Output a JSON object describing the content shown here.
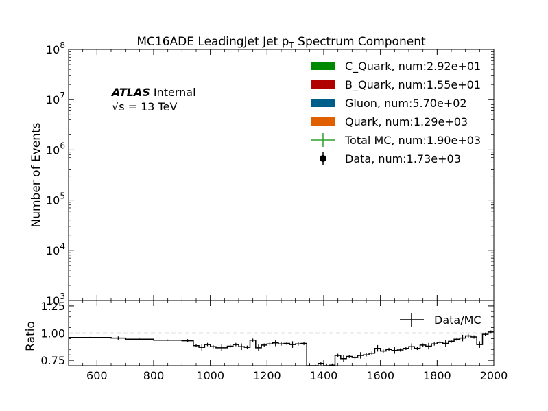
{
  "chart_data": [
    {
      "type": "bar",
      "title": "MC16ADE LeadingJet Jet p",
      "title_sub": "T",
      "title_suffix": " Spectrum Component",
      "ylabel": "Number of Events",
      "yscale": "log",
      "ylim": [
        1000,
        100000000
      ],
      "xlim": [
        500,
        2000
      ],
      "y_ticks": [
        {
          "base": "10",
          "exp": "3",
          "value": 1000
        },
        {
          "base": "10",
          "exp": "4",
          "value": 10000
        },
        {
          "base": "10",
          "exp": "5",
          "value": 100000
        },
        {
          "base": "10",
          "exp": "6",
          "value": 1000000
        },
        {
          "base": "10",
          "exp": "7",
          "value": 10000000
        },
        {
          "base": "10",
          "exp": "8",
          "value": 100000000
        }
      ],
      "atlas_label": "ATLAS",
      "atlas_status": "Internal",
      "energy_label": "√s = 13 TeV",
      "legend_position": "top-right",
      "legend": [
        {
          "label": "C_Quark, num:2.92e+01",
          "color": "#008a00",
          "kind": "patch"
        },
        {
          "label": "B_Quark, num:1.55e+01",
          "color": "#b00000",
          "kind": "patch"
        },
        {
          "label": "Gluon, num:5.70e+02",
          "color": "#005f8a",
          "kind": "patch"
        },
        {
          "label": "Quark, num:1.29e+03",
          "color": "#e06000",
          "kind": "patch"
        },
        {
          "label": "Total MC, num:1.90e+03",
          "color": "#2ca02c",
          "kind": "errorline"
        },
        {
          "label": "Data, num:1.73e+03",
          "color": "#000000",
          "kind": "errorpoint"
        }
      ]
    },
    {
      "type": "line",
      "ylabel": "Ratio",
      "xlim": [
        500,
        2000
      ],
      "ylim": [
        0.7,
        1.3
      ],
      "reference_line": 1.0,
      "x_ticks": [
        "600",
        "800",
        "1000",
        "1200",
        "1400",
        "1600",
        "1800",
        "2000"
      ],
      "y_ticks": [
        "0.75",
        "1.00",
        "1.25"
      ],
      "legend_position": "top-right",
      "series": [
        {
          "name": "Data/MC",
          "color": "#000000",
          "bins": [
            {
              "x0": 500,
              "x1": 650,
              "y": 0.96
            },
            {
              "x0": 650,
              "x1": 700,
              "y": 0.955
            },
            {
              "x0": 700,
              "x1": 800,
              "y": 0.945
            },
            {
              "x0": 800,
              "x1": 900,
              "y": 0.935
            },
            {
              "x0": 900,
              "x1": 940,
              "y": 0.93
            },
            {
              "x0": 940,
              "x1": 960,
              "y": 0.885
            },
            {
              "x0": 960,
              "x1": 980,
              "y": 0.87
            },
            {
              "x0": 980,
              "x1": 1000,
              "y": 0.895
            },
            {
              "x0": 1000,
              "x1": 1020,
              "y": 0.875
            },
            {
              "x0": 1020,
              "x1": 1060,
              "y": 0.865
            },
            {
              "x0": 1060,
              "x1": 1080,
              "y": 0.88
            },
            {
              "x0": 1080,
              "x1": 1100,
              "y": 0.895
            },
            {
              "x0": 1100,
              "x1": 1120,
              "y": 0.875
            },
            {
              "x0": 1120,
              "x1": 1140,
              "y": 0.87
            },
            {
              "x0": 1140,
              "x1": 1160,
              "y": 0.935
            },
            {
              "x0": 1160,
              "x1": 1180,
              "y": 0.865
            },
            {
              "x0": 1180,
              "x1": 1200,
              "y": 0.89
            },
            {
              "x0": 1200,
              "x1": 1220,
              "y": 0.9
            },
            {
              "x0": 1220,
              "x1": 1240,
              "y": 0.91
            },
            {
              "x0": 1240,
              "x1": 1260,
              "y": 0.9
            },
            {
              "x0": 1260,
              "x1": 1280,
              "y": 0.905
            },
            {
              "x0": 1280,
              "x1": 1300,
              "y": 0.895
            },
            {
              "x0": 1300,
              "x1": 1320,
              "y": 0.9
            },
            {
              "x0": 1320,
              "x1": 1340,
              "y": 0.905
            },
            {
              "x0": 1340,
              "x1": 1360,
              "y": 0.685
            },
            {
              "x0": 1360,
              "x1": 1380,
              "y": 0.7
            },
            {
              "x0": 1380,
              "x1": 1400,
              "y": 0.72
            },
            {
              "x0": 1400,
              "x1": 1420,
              "y": 0.69
            },
            {
              "x0": 1420,
              "x1": 1440,
              "y": 0.705
            },
            {
              "x0": 1440,
              "x1": 1460,
              "y": 0.795
            },
            {
              "x0": 1460,
              "x1": 1480,
              "y": 0.765
            },
            {
              "x0": 1480,
              "x1": 1500,
              "y": 0.785
            },
            {
              "x0": 1500,
              "x1": 1520,
              "y": 0.775
            },
            {
              "x0": 1520,
              "x1": 1540,
              "y": 0.795
            },
            {
              "x0": 1540,
              "x1": 1560,
              "y": 0.8
            },
            {
              "x0": 1560,
              "x1": 1580,
              "y": 0.815
            },
            {
              "x0": 1580,
              "x1": 1600,
              "y": 0.86
            },
            {
              "x0": 1600,
              "x1": 1620,
              "y": 0.835
            },
            {
              "x0": 1620,
              "x1": 1640,
              "y": 0.85
            },
            {
              "x0": 1640,
              "x1": 1660,
              "y": 0.84
            },
            {
              "x0": 1660,
              "x1": 1680,
              "y": 0.845
            },
            {
              "x0": 1680,
              "x1": 1700,
              "y": 0.86
            },
            {
              "x0": 1700,
              "x1": 1720,
              "y": 0.875
            },
            {
              "x0": 1720,
              "x1": 1740,
              "y": 0.86
            },
            {
              "x0": 1740,
              "x1": 1760,
              "y": 0.89
            },
            {
              "x0": 1760,
              "x1": 1780,
              "y": 0.88
            },
            {
              "x0": 1780,
              "x1": 1800,
              "y": 0.9
            },
            {
              "x0": 1800,
              "x1": 1820,
              "y": 0.915
            },
            {
              "x0": 1820,
              "x1": 1840,
              "y": 0.905
            },
            {
              "x0": 1840,
              "x1": 1860,
              "y": 0.925
            },
            {
              "x0": 1860,
              "x1": 1880,
              "y": 0.945
            },
            {
              "x0": 1880,
              "x1": 1900,
              "y": 0.955
            },
            {
              "x0": 1900,
              "x1": 1920,
              "y": 0.975
            },
            {
              "x0": 1920,
              "x1": 1940,
              "y": 0.965
            },
            {
              "x0": 1940,
              "x1": 1960,
              "y": 0.895
            },
            {
              "x0": 1960,
              "x1": 1980,
              "y": 0.99
            },
            {
              "x0": 1980,
              "x1": 2000,
              "y": 1.01
            }
          ]
        }
      ]
    }
  ]
}
